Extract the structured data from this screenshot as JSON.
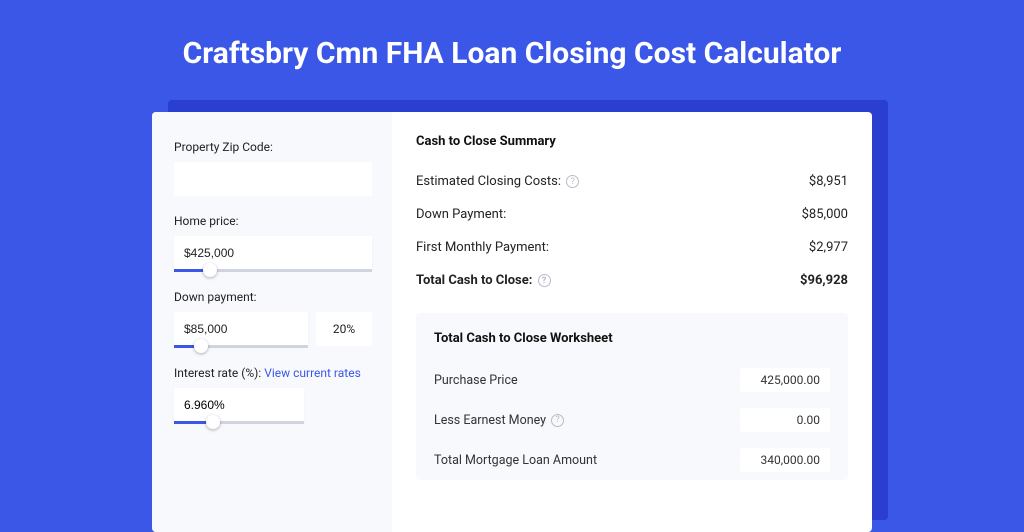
{
  "colors": {
    "page_bg": "#3b57e8",
    "card_shadow": "#2a3fd0",
    "card_bg": "#ffffff",
    "left_pane_bg": "#f8f9fc",
    "worksheet_bg": "#f8f9fc",
    "slider_fill": "#3b57e8",
    "slider_track": "#d0d4e0",
    "link": "#3b57e8",
    "help_border": "#b8bcc8"
  },
  "page": {
    "title": "Craftsbry Cmn FHA Loan Closing Cost Calculator"
  },
  "form": {
    "zip_label": "Property Zip Code:",
    "zip_value": "",
    "home_price_label": "Home price:",
    "home_price_value": "$425,000",
    "home_price_slider_pct": 18,
    "down_payment_label": "Down payment:",
    "down_payment_value": "$85,000",
    "down_payment_pct": "20%",
    "down_payment_slider_pct": 20,
    "interest_rate_label": "Interest rate (%): ",
    "interest_rate_link": "View current rates",
    "interest_rate_value": "6.960%",
    "interest_rate_slider_pct": 30
  },
  "summary": {
    "title": "Cash to Close Summary",
    "rows": [
      {
        "label": "Estimated Closing Costs:",
        "help": true,
        "value": "$8,951",
        "bold": false
      },
      {
        "label": "Down Payment:",
        "help": false,
        "value": "$85,000",
        "bold": false
      },
      {
        "label": "First Monthly Payment:",
        "help": false,
        "value": "$2,977",
        "bold": false
      },
      {
        "label": "Total Cash to Close:",
        "help": true,
        "value": "$96,928",
        "bold": true
      }
    ]
  },
  "worksheet": {
    "title": "Total Cash to Close Worksheet",
    "rows": [
      {
        "label": "Purchase Price",
        "help": false,
        "value": "425,000.00"
      },
      {
        "label": "Less Earnest Money",
        "help": true,
        "value": "0.00"
      },
      {
        "label": "Total Mortgage Loan Amount",
        "help": false,
        "value": "340,000.00"
      }
    ]
  }
}
